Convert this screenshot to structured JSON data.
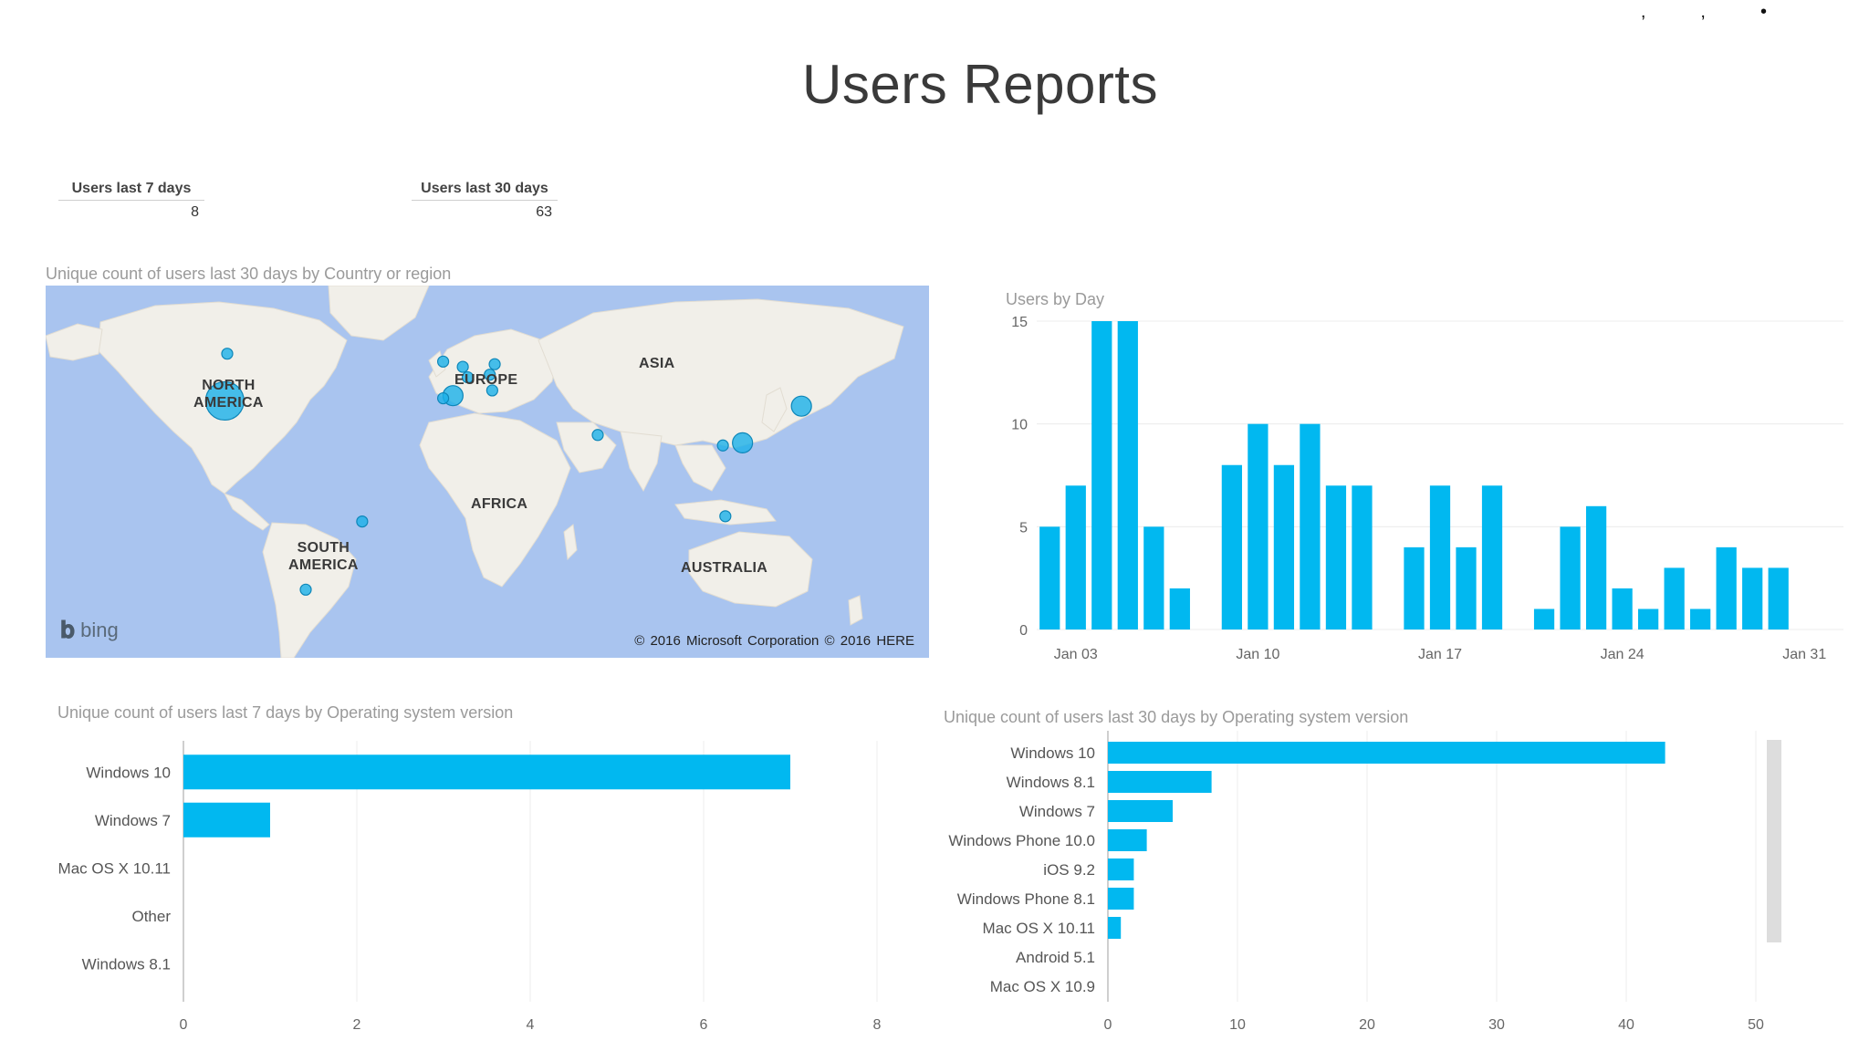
{
  "page": {
    "title": "Users Reports"
  },
  "kpis": {
    "users_7d": {
      "label": "Users last 7 days",
      "value": "8"
    },
    "users_30d": {
      "label": "Users last 30 days",
      "value": "63"
    }
  },
  "map": {
    "title": "Unique count of users last 30 days by Country or region",
    "labels": {
      "north_america": "NORTH\nAMERICA",
      "europe": "EUROPE",
      "asia": "ASIA",
      "africa": "AFRICA",
      "south_america": "SOUTH\nAMERICA",
      "australia": "AUSTRALIA"
    },
    "provider": "bing",
    "credit": "© 2016 Microsoft Corporation   © 2016 HERE",
    "colors": {
      "water": "#a9c4ef",
      "land": "#f1efe9",
      "bubble": "#1ab0e8"
    },
    "bubbles": [
      {
        "lat": 56,
        "lon": -96,
        "size": "small"
      },
      {
        "lat": 38,
        "lon": -97,
        "size": "large"
      },
      {
        "lat": -8,
        "lon": -41,
        "size": "small"
      },
      {
        "lat": -34,
        "lon": -64,
        "size": "small"
      },
      {
        "lat": 53,
        "lon": -8,
        "size": "small"
      },
      {
        "lat": 51,
        "lon": 0,
        "size": "small"
      },
      {
        "lat": 52,
        "lon": 13,
        "size": "small"
      },
      {
        "lat": 47,
        "lon": 2,
        "size": "small"
      },
      {
        "lat": 48,
        "lon": 11,
        "size": "small"
      },
      {
        "lat": 42,
        "lon": 12,
        "size": "small"
      },
      {
        "lat": 40,
        "lon": -4,
        "size": "medium"
      },
      {
        "lat": 39,
        "lon": -8,
        "size": "small"
      },
      {
        "lat": 25,
        "lon": 55,
        "size": "small"
      },
      {
        "lat": 22,
        "lon": 114,
        "size": "medium"
      },
      {
        "lat": 21,
        "lon": 106,
        "size": "small"
      },
      {
        "lat": 36,
        "lon": 138,
        "size": "medium"
      },
      {
        "lat": -6,
        "lon": 107,
        "size": "small"
      }
    ]
  },
  "chart_data": [
    {
      "type": "bar",
      "title": "Users by Day",
      "x": [
        "Jan 02",
        "Jan 03",
        "Jan 04",
        "Jan 05",
        "Jan 06",
        "Jan 07",
        "Jan 08",
        "Jan 09",
        "Jan 10",
        "Jan 11",
        "Jan 12",
        "Jan 13",
        "Jan 14",
        "Jan 15",
        "Jan 16",
        "Jan 17",
        "Jan 18",
        "Jan 19",
        "Jan 20",
        "Jan 21",
        "Jan 22",
        "Jan 23",
        "Jan 24",
        "Jan 25",
        "Jan 26",
        "Jan 27",
        "Jan 28",
        "Jan 29",
        "Jan 30",
        "Jan 31",
        "Feb 01"
      ],
      "values": [
        5,
        7,
        15,
        15,
        5,
        2,
        0,
        8,
        10,
        8,
        10,
        7,
        7,
        0,
        4,
        7,
        4,
        7,
        0,
        1,
        5,
        6,
        2,
        1,
        3,
        1,
        4,
        3,
        3,
        0,
        0
      ],
      "xticks": [
        "Jan 03",
        "Jan 10",
        "Jan 17",
        "Jan 24",
        "Jan 31"
      ],
      "yticks": [
        0,
        5,
        10,
        15
      ],
      "ylim": [
        0,
        15
      ],
      "color": "#01b8f0",
      "grid": true
    },
    {
      "type": "bar",
      "orientation": "horizontal",
      "title": "Unique count of users last 7 days by Operating system version",
      "categories": [
        "Windows 10",
        "Windows 7",
        "Mac OS X 10.11",
        "Other",
        "Windows 8.1"
      ],
      "values": [
        7,
        1,
        0,
        0,
        0
      ],
      "xticks": [
        0,
        2,
        4,
        6,
        8
      ],
      "xlim": [
        0,
        8
      ],
      "color": "#01b8f0",
      "grid": true
    },
    {
      "type": "bar",
      "orientation": "horizontal",
      "title": "Unique count of users last 30 days by Operating system version",
      "categories": [
        "Windows 10",
        "Windows 8.1",
        "Windows 7",
        "Windows Phone 10.0",
        "iOS 9.2",
        "Windows Phone 8.1",
        "Mac OS X 10.11",
        "Android 5.1",
        "Mac OS X 10.9"
      ],
      "values": [
        43,
        8,
        5,
        3,
        2,
        2,
        1,
        0,
        0
      ],
      "xticks": [
        0,
        10,
        20,
        30,
        40,
        50
      ],
      "xlim": [
        0,
        50
      ],
      "color": "#01b8f0",
      "grid": true
    }
  ]
}
